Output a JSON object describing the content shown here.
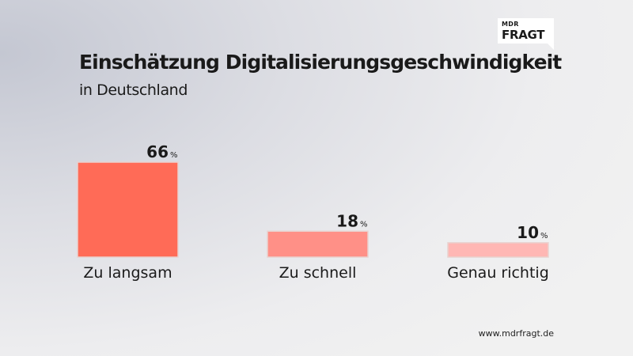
{
  "logo": {
    "line1": "MDR",
    "line2": "FRAGT"
  },
  "header": {
    "title": "Einschätzung Digitalisierungsgeschwindigkeit",
    "subtitle": "in Deutschland"
  },
  "footer": {
    "url": "www.mdrfragt.de"
  },
  "chart_data": {
    "type": "bar",
    "title": "Einschätzung Digitalisierungsgeschwindigkeit",
    "subtitle": "in Deutschland",
    "categories": [
      "Zu langsam",
      "Zu schnell",
      "Genau richtig"
    ],
    "values": [
      66,
      18,
      10
    ],
    "unit": "%",
    "colors": [
      "#ff6b57",
      "#ff9087",
      "#ffb7b4"
    ],
    "xlabel": "",
    "ylabel": "",
    "ylim": [
      0,
      66
    ],
    "grid": false,
    "legend": "none"
  }
}
